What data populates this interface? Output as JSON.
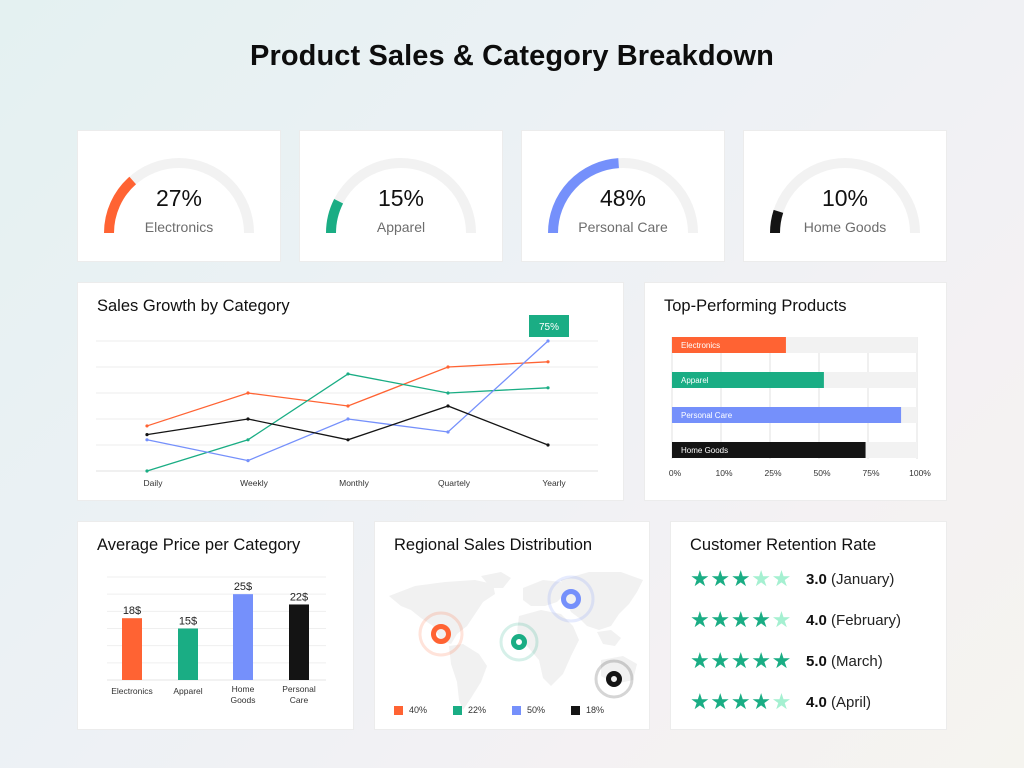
{
  "header": {
    "title": "Product Sales & Category Breakdown"
  },
  "colors": {
    "electronics": "#ff6333",
    "apparel": "#1aad84",
    "personal_care": "#7590fb",
    "home_goods": "#141414",
    "track": "#f2f2f2",
    "star_filled": "#1aad84",
    "star_empty": "#a5f0d1"
  },
  "gauges": [
    {
      "value": 27,
      "display": "27%",
      "label": "Electronics",
      "color": "#ff6333"
    },
    {
      "value": 15,
      "display": "15%",
      "label": "Apparel",
      "color": "#1aad84"
    },
    {
      "value": 48,
      "display": "48%",
      "label": "Personal Care",
      "color": "#7590fb"
    },
    {
      "value": 10,
      "display": "10%",
      "label": "Home Goods",
      "color": "#141414"
    }
  ],
  "chart_data": [
    {
      "id": "sales-growth",
      "type": "line",
      "title": "Sales Growth by Category",
      "categories": [
        "Daily",
        "Weekly",
        "Monthly",
        "Quartely",
        "Yearly"
      ],
      "ylim": [
        0,
        75
      ],
      "ygrid_step": 15,
      "grid": true,
      "series": [
        {
          "name": "Electronics",
          "color": "#ff6333",
          "values": [
            26,
            45,
            37.5,
            60,
            63
          ]
        },
        {
          "name": "Apparel",
          "color": "#1aad84",
          "values": [
            0,
            18,
            56,
            45,
            48
          ]
        },
        {
          "name": "Personal Care",
          "color": "#7590fb",
          "values": [
            18,
            6,
            30,
            22.5,
            75
          ]
        },
        {
          "name": "Home Goods",
          "color": "#141414",
          "values": [
            21,
            30,
            18,
            37.5,
            15
          ]
        }
      ],
      "annotation": {
        "text": "75%",
        "series": "Personal Care",
        "category": "Yearly",
        "color": "#1aad84"
      }
    },
    {
      "id": "top-products",
      "type": "bar",
      "orientation": "horizontal",
      "title": "Top-Performing Products",
      "categories": [
        "Electronics",
        "Apparel",
        "Personal Care",
        "Home Goods"
      ],
      "values": [
        0.465,
        0.62,
        0.935,
        0.79
      ],
      "colors": [
        "#ff6333",
        "#1aad84",
        "#7590fb",
        "#141414"
      ],
      "xtick_labels": [
        "0%",
        "10%",
        "25%",
        "50%",
        "75%",
        "100%"
      ],
      "note": "values are fraction of the evenly spaced axis track"
    },
    {
      "id": "avg-price",
      "type": "bar",
      "title": "Average Price per Category",
      "categories": [
        [
          "Electronics"
        ],
        [
          "Apparel"
        ],
        [
          "Home",
          "Goods"
        ],
        [
          "Personal",
          "Care"
        ]
      ],
      "values": [
        18,
        15,
        25,
        22
      ],
      "data_labels": [
        "18$",
        "15$",
        "25$",
        "22$"
      ],
      "colors": [
        "#ff6333",
        "#1aad84",
        "#7590fb",
        "#141414"
      ],
      "ylim": [
        0,
        30
      ],
      "ygrid_step": 5
    },
    {
      "id": "regional",
      "type": "scatter",
      "title": "Regional Sales Distribution",
      "points": [
        {
          "region": "North America",
          "share": "40%",
          "color": "#ff6333"
        },
        {
          "region": "Africa",
          "share": "22%",
          "color": "#1aad84"
        },
        {
          "region": "Asia",
          "share": "50%",
          "color": "#7590fb"
        },
        {
          "region": "Oceania",
          "share": "18%",
          "color": "#141414"
        }
      ]
    }
  ],
  "line_card": {
    "title": "Sales Growth by Category",
    "badge": "75%"
  },
  "bar_card": {
    "title": "Top-Performing Products"
  },
  "col_card": {
    "title": "Average Price per Category"
  },
  "map_card": {
    "title": "Regional Sales Distribution",
    "legend": [
      {
        "label": "40%",
        "color": "#ff6333"
      },
      {
        "label": "22%",
        "color": "#1aad84"
      },
      {
        "label": "50%",
        "color": "#7590fb"
      },
      {
        "label": "18%",
        "color": "#141414"
      }
    ]
  },
  "retention": {
    "title": "Customer Retention Rate",
    "rows": [
      {
        "rating": 3,
        "score": "3.0",
        "month": "(January)"
      },
      {
        "rating": 4,
        "score": "4.0",
        "month": "(February)"
      },
      {
        "rating": 5,
        "score": "5.0",
        "month": "(March)"
      },
      {
        "rating": 4,
        "score": "4.0",
        "month": "(April)"
      }
    ],
    "max": 5
  }
}
